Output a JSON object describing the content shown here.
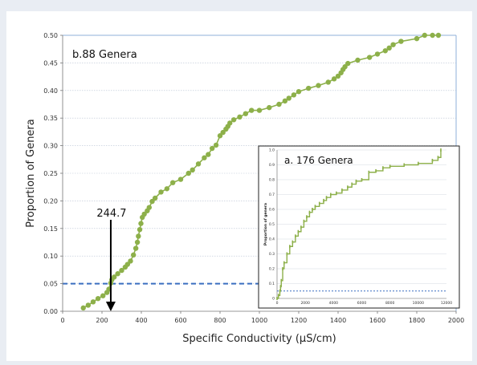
{
  "chart_data": [
    {
      "type": "scatter",
      "panel_label": "b.88 Genera",
      "xlabel": "Specific Conductivity (µS/cm)",
      "ylabel": "Proportion of Genera",
      "xlim": [
        0,
        2000
      ],
      "ylim": [
        0,
        0.5
      ],
      "x_ticks": [
        0,
        200,
        400,
        600,
        800,
        1000,
        1200,
        1400,
        1600,
        1800,
        2000
      ],
      "y_ticks": [
        "0.00",
        "0.05",
        "0.10",
        "0.15",
        "0.20",
        "0.25",
        "0.30",
        "0.35",
        "0.40",
        "0.45",
        "0.50"
      ],
      "grid": "horizontal",
      "series_color": "#8db04a",
      "threshold_color": "#3a6fc0",
      "threshold_y": 0.05,
      "annotation": {
        "text": "244.7",
        "x": 244.7
      },
      "series": [
        {
          "x": [
            105,
            130,
            155,
            180,
            205,
            225,
            235,
            244.7,
            250,
            262,
            280,
            300,
            318,
            330,
            345,
            360,
            372,
            380,
            385,
            392,
            398,
            405,
            415,
            430,
            440,
            455,
            470,
            500,
            530,
            560,
            600,
            640,
            660,
            690,
            720,
            740,
            760,
            780,
            800,
            815,
            830,
            840,
            850,
            870,
            900,
            930,
            960,
            1000,
            1050,
            1100,
            1130,
            1150,
            1175,
            1200,
            1250,
            1300,
            1350,
            1380,
            1400,
            1415,
            1425,
            1435,
            1450,
            1500,
            1560,
            1600,
            1640,
            1660,
            1680,
            1720,
            1800,
            1840,
            1880,
            1910
          ],
          "y": [
            0.006,
            0.011,
            0.017,
            0.023,
            0.028,
            0.034,
            0.04,
            0.051,
            0.057,
            0.062,
            0.068,
            0.074,
            0.08,
            0.085,
            0.091,
            0.102,
            0.114,
            0.125,
            0.136,
            0.148,
            0.159,
            0.17,
            0.176,
            0.182,
            0.188,
            0.199,
            0.205,
            0.216,
            0.222,
            0.233,
            0.239,
            0.25,
            0.256,
            0.267,
            0.278,
            0.284,
            0.295,
            0.301,
            0.318,
            0.324,
            0.33,
            0.335,
            0.341,
            0.347,
            0.352,
            0.358,
            0.364,
            0.364,
            0.369,
            0.375,
            0.381,
            0.386,
            0.392,
            0.398,
            0.404,
            0.409,
            0.415,
            0.421,
            0.426,
            0.432,
            0.438,
            0.443,
            0.449,
            0.455,
            0.46,
            0.466,
            0.472,
            0.477,
            0.483,
            0.489,
            0.494,
            0.5,
            0.5,
            0.5
          ]
        }
      ]
    },
    {
      "type": "line",
      "panel_label": "a. 176 Genera",
      "ylabel": "Proportion of genera",
      "xlim": [
        0,
        12000
      ],
      "ylim": [
        0,
        1.0
      ],
      "x_ticks": [
        "0",
        "2000",
        "4000",
        "6000",
        "8000",
        "10000",
        "12000"
      ],
      "y_ticks": [
        "0",
        "0.1",
        "0.2",
        "0.3",
        "0.4",
        "0.5",
        "0.6",
        "0.7",
        "0.8",
        "0.9",
        "1.0"
      ],
      "grid": "horizontal",
      "threshold_y": 0.05,
      "series": [
        {
          "x": [
            0,
            100,
            200,
            250,
            300,
            400,
            500,
            700,
            900,
            1100,
            1300,
            1500,
            1700,
            1900,
            2100,
            2300,
            2500,
            2700,
            3000,
            3300,
            3500,
            3800,
            4200,
            4600,
            5000,
            5300,
            5600,
            6000,
            6500,
            7000,
            7500,
            8000,
            9000,
            10000,
            11000,
            11400,
            11600
          ],
          "y": [
            0,
            0.02,
            0.05,
            0.08,
            0.12,
            0.2,
            0.24,
            0.3,
            0.35,
            0.38,
            0.42,
            0.45,
            0.48,
            0.52,
            0.55,
            0.58,
            0.6,
            0.62,
            0.64,
            0.66,
            0.68,
            0.7,
            0.71,
            0.73,
            0.75,
            0.77,
            0.79,
            0.8,
            0.85,
            0.86,
            0.88,
            0.89,
            0.9,
            0.91,
            0.93,
            0.95,
            1.0
          ]
        }
      ]
    }
  ]
}
